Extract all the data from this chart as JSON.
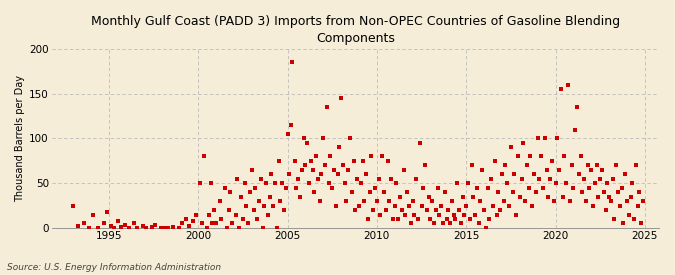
{
  "title": "Monthly Gulf Coast (PADD 3) Imports from Non-OPEC Countries of Gasoline Blending\nComponents",
  "ylabel": "Thousand Barrels per Day",
  "source": "Source: U.S. Energy Information Administration",
  "fig_background_color": "#F5EDD8",
  "plot_background_color": "#F5EDD8",
  "marker_color": "#CC0000",
  "grid_color": "#BBBBBB",
  "xlim": [
    1991.8,
    2025.8
  ],
  "ylim": [
    0,
    200
  ],
  "yticks": [
    0,
    50,
    100,
    150,
    200
  ],
  "xticks": [
    1995,
    2000,
    2005,
    2010,
    2015,
    2020,
    2025
  ],
  "data_points": [
    [
      1993.0,
      25
    ],
    [
      1993.3,
      2
    ],
    [
      1993.6,
      5
    ],
    [
      1993.9,
      0
    ],
    [
      1994.1,
      15
    ],
    [
      1994.4,
      0
    ],
    [
      1994.7,
      5
    ],
    [
      1994.9,
      18
    ],
    [
      1995.1,
      2
    ],
    [
      1995.3,
      0
    ],
    [
      1995.5,
      8
    ],
    [
      1995.7,
      1
    ],
    [
      1995.9,
      3
    ],
    [
      1996.1,
      0
    ],
    [
      1996.4,
      5
    ],
    [
      1996.6,
      0
    ],
    [
      1996.9,
      2
    ],
    [
      1997.1,
      0
    ],
    [
      1997.4,
      1
    ],
    [
      1997.6,
      3
    ],
    [
      1997.9,
      0
    ],
    [
      1998.1,
      0
    ],
    [
      1998.3,
      0
    ],
    [
      1998.6,
      1
    ],
    [
      1998.9,
      0
    ],
    [
      1999.1,
      5
    ],
    [
      1999.3,
      10
    ],
    [
      1999.5,
      2
    ],
    [
      1999.7,
      8
    ],
    [
      1999.9,
      15
    ],
    [
      2000.1,
      50
    ],
    [
      2000.2,
      5
    ],
    [
      2000.3,
      80
    ],
    [
      2000.5,
      0
    ],
    [
      2000.6,
      15
    ],
    [
      2000.7,
      50
    ],
    [
      2000.8,
      5
    ],
    [
      2000.9,
      20
    ],
    [
      2001.0,
      5
    ],
    [
      2001.2,
      30
    ],
    [
      2001.3,
      10
    ],
    [
      2001.5,
      45
    ],
    [
      2001.6,
      0
    ],
    [
      2001.7,
      20
    ],
    [
      2001.8,
      40
    ],
    [
      2001.9,
      5
    ],
    [
      2002.1,
      15
    ],
    [
      2002.2,
      55
    ],
    [
      2002.3,
      0
    ],
    [
      2002.4,
      35
    ],
    [
      2002.5,
      10
    ],
    [
      2002.6,
      50
    ],
    [
      2002.7,
      25
    ],
    [
      2002.8,
      5
    ],
    [
      2002.9,
      40
    ],
    [
      2003.0,
      65
    ],
    [
      2003.1,
      20
    ],
    [
      2003.2,
      45
    ],
    [
      2003.3,
      10
    ],
    [
      2003.4,
      30
    ],
    [
      2003.5,
      55
    ],
    [
      2003.6,
      0
    ],
    [
      2003.7,
      25
    ],
    [
      2003.8,
      50
    ],
    [
      2003.9,
      15
    ],
    [
      2004.0,
      35
    ],
    [
      2004.1,
      60
    ],
    [
      2004.2,
      25
    ],
    [
      2004.3,
      50
    ],
    [
      2004.4,
      0
    ],
    [
      2004.5,
      75
    ],
    [
      2004.6,
      30
    ],
    [
      2004.7,
      50
    ],
    [
      2004.8,
      20
    ],
    [
      2004.9,
      45
    ],
    [
      2005.0,
      105
    ],
    [
      2005.1,
      60
    ],
    [
      2005.2,
      115
    ],
    [
      2005.25,
      185
    ],
    [
      2005.4,
      75
    ],
    [
      2005.5,
      45
    ],
    [
      2005.6,
      55
    ],
    [
      2005.7,
      35
    ],
    [
      2005.8,
      65
    ],
    [
      2005.9,
      100
    ],
    [
      2006.0,
      70
    ],
    [
      2006.1,
      95
    ],
    [
      2006.2,
      50
    ],
    [
      2006.3,
      75
    ],
    [
      2006.4,
      65
    ],
    [
      2006.5,
      40
    ],
    [
      2006.6,
      80
    ],
    [
      2006.7,
      55
    ],
    [
      2006.8,
      30
    ],
    [
      2006.9,
      60
    ],
    [
      2007.0,
      100
    ],
    [
      2007.1,
      70
    ],
    [
      2007.2,
      135
    ],
    [
      2007.3,
      50
    ],
    [
      2007.4,
      80
    ],
    [
      2007.5,
      45
    ],
    [
      2007.6,
      65
    ],
    [
      2007.7,
      25
    ],
    [
      2007.8,
      60
    ],
    [
      2007.9,
      90
    ],
    [
      2008.0,
      145
    ],
    [
      2008.1,
      70
    ],
    [
      2008.2,
      50
    ],
    [
      2008.3,
      30
    ],
    [
      2008.4,
      65
    ],
    [
      2008.5,
      100
    ],
    [
      2008.6,
      40
    ],
    [
      2008.7,
      75
    ],
    [
      2008.8,
      20
    ],
    [
      2008.9,
      55
    ],
    [
      2009.0,
      25
    ],
    [
      2009.1,
      50
    ],
    [
      2009.2,
      75
    ],
    [
      2009.3,
      30
    ],
    [
      2009.4,
      60
    ],
    [
      2009.5,
      10
    ],
    [
      2009.6,
      40
    ],
    [
      2009.7,
      80
    ],
    [
      2009.8,
      20
    ],
    [
      2009.9,
      45
    ],
    [
      2010.0,
      30
    ],
    [
      2010.1,
      55
    ],
    [
      2010.2,
      15
    ],
    [
      2010.3,
      80
    ],
    [
      2010.4,
      40
    ],
    [
      2010.5,
      20
    ],
    [
      2010.6,
      75
    ],
    [
      2010.7,
      30
    ],
    [
      2010.8,
      55
    ],
    [
      2010.9,
      10
    ],
    [
      2011.0,
      25
    ],
    [
      2011.1,
      50
    ],
    [
      2011.2,
      10
    ],
    [
      2011.3,
      35
    ],
    [
      2011.4,
      20
    ],
    [
      2011.5,
      65
    ],
    [
      2011.6,
      15
    ],
    [
      2011.7,
      40
    ],
    [
      2011.8,
      25
    ],
    [
      2011.9,
      5
    ],
    [
      2012.0,
      30
    ],
    [
      2012.1,
      15
    ],
    [
      2012.2,
      55
    ],
    [
      2012.3,
      10
    ],
    [
      2012.4,
      95
    ],
    [
      2012.5,
      25
    ],
    [
      2012.6,
      45
    ],
    [
      2012.7,
      70
    ],
    [
      2012.8,
      20
    ],
    [
      2012.9,
      35
    ],
    [
      2013.0,
      10
    ],
    [
      2013.1,
      30
    ],
    [
      2013.2,
      5
    ],
    [
      2013.3,
      20
    ],
    [
      2013.4,
      45
    ],
    [
      2013.5,
      15
    ],
    [
      2013.6,
      25
    ],
    [
      2013.7,
      5
    ],
    [
      2013.8,
      40
    ],
    [
      2013.9,
      10
    ],
    [
      2014.0,
      20
    ],
    [
      2014.1,
      5
    ],
    [
      2014.2,
      30
    ],
    [
      2014.3,
      15
    ],
    [
      2014.4,
      10
    ],
    [
      2014.5,
      50
    ],
    [
      2014.6,
      20
    ],
    [
      2014.7,
      5
    ],
    [
      2014.8,
      35
    ],
    [
      2014.9,
      15
    ],
    [
      2015.0,
      25
    ],
    [
      2015.1,
      50
    ],
    [
      2015.2,
      10
    ],
    [
      2015.3,
      70
    ],
    [
      2015.4,
      35
    ],
    [
      2015.5,
      15
    ],
    [
      2015.6,
      45
    ],
    [
      2015.7,
      5
    ],
    [
      2015.8,
      30
    ],
    [
      2015.9,
      65
    ],
    [
      2016.0,
      20
    ],
    [
      2016.1,
      0
    ],
    [
      2016.2,
      45
    ],
    [
      2016.3,
      10
    ],
    [
      2016.4,
      55
    ],
    [
      2016.5,
      25
    ],
    [
      2016.6,
      75
    ],
    [
      2016.7,
      15
    ],
    [
      2016.8,
      40
    ],
    [
      2016.9,
      20
    ],
    [
      2017.0,
      60
    ],
    [
      2017.1,
      30
    ],
    [
      2017.2,
      70
    ],
    [
      2017.3,
      50
    ],
    [
      2017.4,
      25
    ],
    [
      2017.5,
      90
    ],
    [
      2017.6,
      40
    ],
    [
      2017.7,
      60
    ],
    [
      2017.8,
      15
    ],
    [
      2017.9,
      80
    ],
    [
      2018.0,
      35
    ],
    [
      2018.1,
      55
    ],
    [
      2018.2,
      95
    ],
    [
      2018.3,
      30
    ],
    [
      2018.4,
      70
    ],
    [
      2018.5,
      45
    ],
    [
      2018.6,
      80
    ],
    [
      2018.7,
      25
    ],
    [
      2018.8,
      60
    ],
    [
      2018.9,
      40
    ],
    [
      2019.0,
      100
    ],
    [
      2019.1,
      55
    ],
    [
      2019.2,
      80
    ],
    [
      2019.3,
      45
    ],
    [
      2019.4,
      100
    ],
    [
      2019.5,
      65
    ],
    [
      2019.6,
      35
    ],
    [
      2019.7,
      55
    ],
    [
      2019.8,
      75
    ],
    [
      2019.9,
      30
    ],
    [
      2020.0,
      50
    ],
    [
      2020.1,
      100
    ],
    [
      2020.2,
      65
    ],
    [
      2020.3,
      155
    ],
    [
      2020.4,
      35
    ],
    [
      2020.5,
      80
    ],
    [
      2020.6,
      50
    ],
    [
      2020.7,
      160
    ],
    [
      2020.8,
      30
    ],
    [
      2020.9,
      70
    ],
    [
      2021.0,
      45
    ],
    [
      2021.1,
      110
    ],
    [
      2021.2,
      135
    ],
    [
      2021.3,
      60
    ],
    [
      2021.4,
      80
    ],
    [
      2021.5,
      40
    ],
    [
      2021.6,
      55
    ],
    [
      2021.7,
      30
    ],
    [
      2021.8,
      70
    ],
    [
      2021.9,
      45
    ],
    [
      2022.0,
      65
    ],
    [
      2022.1,
      25
    ],
    [
      2022.2,
      50
    ],
    [
      2022.3,
      70
    ],
    [
      2022.4,
      35
    ],
    [
      2022.5,
      55
    ],
    [
      2022.6,
      65
    ],
    [
      2022.7,
      40
    ],
    [
      2022.8,
      20
    ],
    [
      2022.9,
      50
    ],
    [
      2023.0,
      35
    ],
    [
      2023.1,
      30
    ],
    [
      2023.2,
      55
    ],
    [
      2023.3,
      10
    ],
    [
      2023.4,
      70
    ],
    [
      2023.5,
      40
    ],
    [
      2023.6,
      25
    ],
    [
      2023.7,
      45
    ],
    [
      2023.8,
      5
    ],
    [
      2023.9,
      60
    ],
    [
      2024.0,
      30
    ],
    [
      2024.1,
      15
    ],
    [
      2024.2,
      35
    ],
    [
      2024.3,
      50
    ],
    [
      2024.4,
      10
    ],
    [
      2024.5,
      70
    ],
    [
      2024.6,
      25
    ],
    [
      2024.7,
      40
    ],
    [
      2024.8,
      5
    ],
    [
      2024.9,
      30
    ]
  ]
}
